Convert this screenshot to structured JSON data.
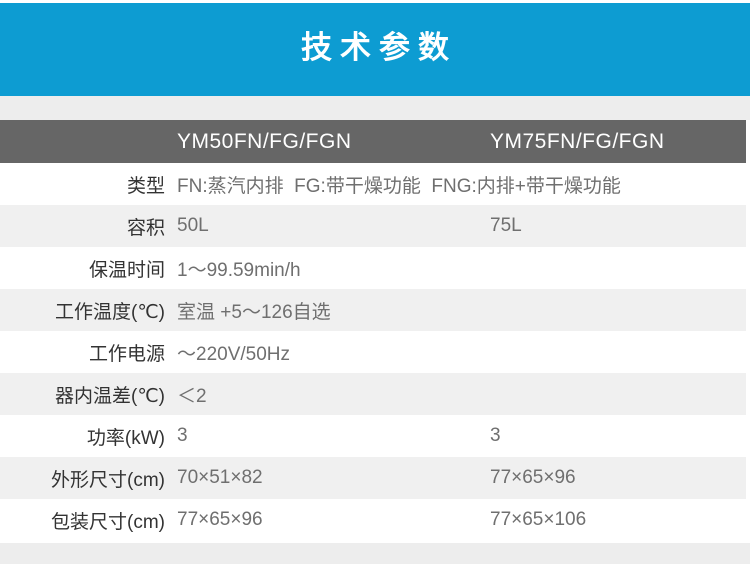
{
  "page": {
    "title": "技术参数"
  },
  "table": {
    "columns": [
      "YM50FN/FG/FGN",
      "YM75FN/FG/FGN"
    ],
    "rows": [
      {
        "label": "类型",
        "span": "FN:蒸汽内排  FG:带干燥功能  FNG:内排+带干燥功能"
      },
      {
        "label": "容积",
        "values": [
          "50L",
          "75L"
        ]
      },
      {
        "label": "保温时间",
        "span": "1～99.59min/h"
      },
      {
        "label": "工作温度(℃)",
        "span": "室温 +5～126自选"
      },
      {
        "label": "工作电源",
        "span": "～220V/50Hz"
      },
      {
        "label": "器内温差(℃)",
        "span": "＜2"
      },
      {
        "label": "功率(kW)",
        "values": [
          "3",
          "3"
        ]
      },
      {
        "label": "外形尺寸(cm)",
        "values": [
          "70×51×82",
          "77×65×96"
        ]
      },
      {
        "label": "包装尺寸(cm)",
        "values": [
          "77×65×96",
          "77×65×106"
        ]
      }
    ]
  },
  "colors": {
    "banner_blue": "#0d9cd2",
    "table_header_gray": "#666666",
    "band_gray": "#ededed",
    "row_stripe_gray": "#f0f0f0",
    "label_text": "#333333",
    "value_text": "#6f6f6f"
  }
}
